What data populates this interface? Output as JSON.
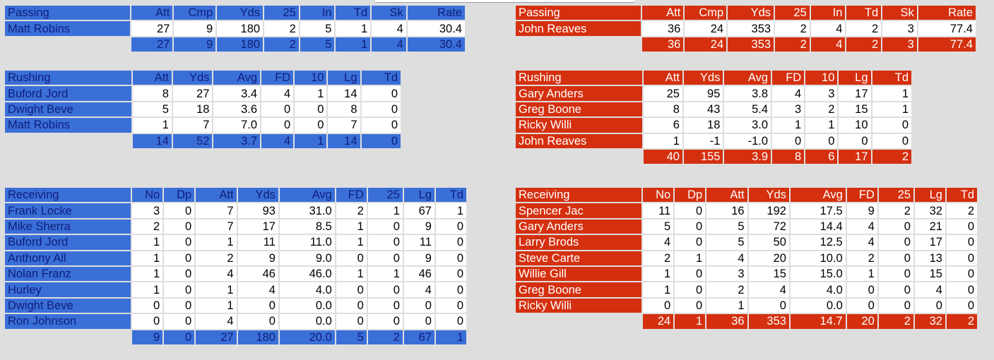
{
  "away": {
    "passing": {
      "title": "Passing",
      "columns": [
        "Att",
        "Cmp",
        "Yds",
        "25",
        "In",
        "Td",
        "Sk",
        "Rate"
      ],
      "rows": [
        {
          "name": "Matt Robins",
          "values": [
            "27",
            "9",
            "180",
            "2",
            "5",
            "1",
            "4",
            "30.4"
          ]
        }
      ],
      "totals": [
        "27",
        "9",
        "180",
        "2",
        "5",
        "1",
        "4",
        "30.4"
      ]
    },
    "rushing": {
      "title": "Rushing",
      "columns": [
        "Att",
        "Yds",
        "Avg",
        "FD",
        "10",
        "Lg",
        "Td"
      ],
      "rows": [
        {
          "name": "Buford Jord",
          "values": [
            "8",
            "27",
            "3.4",
            "4",
            "1",
            "14",
            "0"
          ]
        },
        {
          "name": "Dwight Beve",
          "values": [
            "5",
            "18",
            "3.6",
            "0",
            "0",
            "8",
            "0"
          ]
        },
        {
          "name": "Matt Robins",
          "values": [
            "1",
            "7",
            "7.0",
            "0",
            "0",
            "7",
            "0"
          ]
        }
      ],
      "totals": [
        "14",
        "52",
        "3.7",
        "4",
        "1",
        "14",
        "0"
      ]
    },
    "receiving": {
      "title": "Receiving",
      "columns": [
        "No",
        "Dp",
        "Att",
        "Yds",
        "Avg",
        "FD",
        "25",
        "Lg",
        "Td"
      ],
      "rows": [
        {
          "name": "Frank Locke",
          "values": [
            "3",
            "0",
            "7",
            "93",
            "31.0",
            "2",
            "1",
            "67",
            "1"
          ]
        },
        {
          "name": "Mike Sherra",
          "values": [
            "2",
            "0",
            "7",
            "17",
            "8.5",
            "1",
            "0",
            "9",
            "0"
          ]
        },
        {
          "name": "Buford Jord",
          "values": [
            "1",
            "0",
            "1",
            "11",
            "11.0",
            "1",
            "0",
            "11",
            "0"
          ]
        },
        {
          "name": "Anthony All",
          "values": [
            "1",
            "0",
            "2",
            "9",
            "9.0",
            "0",
            "0",
            "9",
            "0"
          ]
        },
        {
          "name": "Nolan Franz",
          "values": [
            "1",
            "0",
            "4",
            "46",
            "46.0",
            "1",
            "1",
            "46",
            "0"
          ]
        },
        {
          "name": "Hurley",
          "values": [
            "1",
            "0",
            "1",
            "4",
            "4.0",
            "0",
            "0",
            "4",
            "0"
          ]
        },
        {
          "name": "Dwight Beve",
          "values": [
            "0",
            "0",
            "1",
            "0",
            "0.0",
            "0",
            "0",
            "0",
            "0"
          ]
        },
        {
          "name": "Ron Johnson",
          "values": [
            "0",
            "0",
            "4",
            "0",
            "0.0",
            "0",
            "0",
            "0",
            "0"
          ]
        }
      ],
      "totals": [
        "9",
        "0",
        "27",
        "180",
        "20.0",
        "5",
        "2",
        "67",
        "1"
      ]
    }
  },
  "home": {
    "passing": {
      "title": "Passing",
      "columns": [
        "Att",
        "Cmp",
        "Yds",
        "25",
        "In",
        "Td",
        "Sk",
        "Rate"
      ],
      "rows": [
        {
          "name": "John Reaves",
          "values": [
            "36",
            "24",
            "353",
            "2",
            "4",
            "2",
            "3",
            "77.4"
          ]
        }
      ],
      "totals": [
        "36",
        "24",
        "353",
        "2",
        "4",
        "2",
        "3",
        "77.4"
      ]
    },
    "rushing": {
      "title": "Rushing",
      "columns": [
        "Att",
        "Yds",
        "Avg",
        "FD",
        "10",
        "Lg",
        "Td"
      ],
      "rows": [
        {
          "name": "Gary Anders",
          "values": [
            "25",
            "95",
            "3.8",
            "4",
            "3",
            "17",
            "1"
          ]
        },
        {
          "name": "Greg Boone",
          "values": [
            "8",
            "43",
            "5.4",
            "3",
            "2",
            "15",
            "1"
          ]
        },
        {
          "name": "Ricky Willi",
          "values": [
            "6",
            "18",
            "3.0",
            "1",
            "1",
            "10",
            "0"
          ]
        },
        {
          "name": "John Reaves",
          "values": [
            "1",
            "-1",
            "-1.0",
            "0",
            "0",
            "0",
            "0"
          ]
        }
      ],
      "totals": [
        "40",
        "155",
        "3.9",
        "8",
        "6",
        "17",
        "2"
      ]
    },
    "receiving": {
      "title": "Receiving",
      "columns": [
        "No",
        "Dp",
        "Att",
        "Yds",
        "Avg",
        "FD",
        "25",
        "Lg",
        "Td"
      ],
      "rows": [
        {
          "name": "Spencer Jac",
          "values": [
            "11",
            "0",
            "16",
            "192",
            "17.5",
            "9",
            "2",
            "32",
            "2"
          ]
        },
        {
          "name": "Gary Anders",
          "values": [
            "5",
            "0",
            "5",
            "72",
            "14.4",
            "4",
            "0",
            "21",
            "0"
          ]
        },
        {
          "name": "Larry Brods",
          "values": [
            "4",
            "0",
            "5",
            "50",
            "12.5",
            "4",
            "0",
            "17",
            "0"
          ]
        },
        {
          "name": "Steve Carte",
          "values": [
            "2",
            "1",
            "4",
            "20",
            "10.0",
            "2",
            "0",
            "13",
            "0"
          ]
        },
        {
          "name": "Willie Gill",
          "values": [
            "1",
            "0",
            "3",
            "15",
            "15.0",
            "1",
            "0",
            "15",
            "0"
          ]
        },
        {
          "name": "Greg Boone",
          "values": [
            "1",
            "0",
            "2",
            "4",
            "4.0",
            "0",
            "0",
            "4",
            "0"
          ]
        },
        {
          "name": "Ricky Willi",
          "values": [
            "0",
            "0",
            "1",
            "0",
            "0.0",
            "0",
            "0",
            "0",
            "0"
          ]
        }
      ],
      "totals": [
        "24",
        "1",
        "36",
        "353",
        "14.7",
        "20",
        "2",
        "32",
        "2"
      ]
    }
  },
  "colors": {
    "away_header": "#3a6fd8",
    "away_text": "#0f1f7a",
    "home_header": "#d4300f",
    "home_text": "#ffffff",
    "background": "#dedede"
  }
}
